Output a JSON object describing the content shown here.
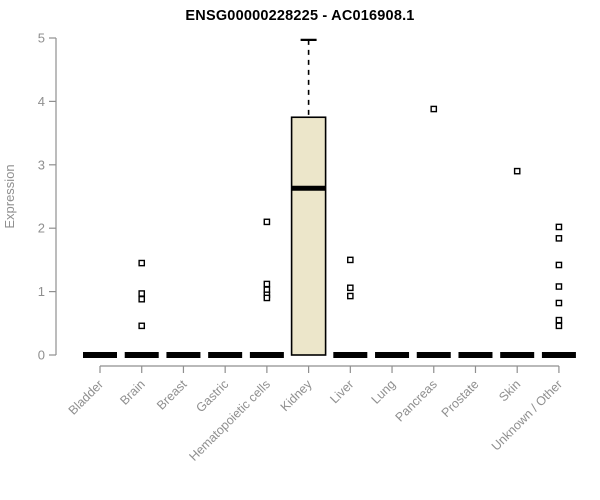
{
  "chart_data": {
    "type": "boxplot",
    "title": "ENSG00000228225 - AC016908.1",
    "ylabel": "Expression",
    "xlabel": "",
    "ylim": [
      0,
      5
    ],
    "yticks": [
      0,
      1,
      2,
      3,
      4,
      5
    ],
    "grid": false,
    "legend": false,
    "categories": [
      "Bladder",
      "Brain",
      "Breast",
      "Gastric",
      "Hematopoietic cells",
      "Kidney",
      "Liver",
      "Lung",
      "Pancreas",
      "Prostate",
      "Skin",
      "Unknown / Other"
    ],
    "boxes": [
      {
        "category": "Bladder",
        "q1": 0,
        "median": 0,
        "q3": 0,
        "whisker_low": 0,
        "whisker_high": 0,
        "outliers": []
      },
      {
        "category": "Brain",
        "q1": 0,
        "median": 0,
        "q3": 0,
        "whisker_low": 0,
        "whisker_high": 0,
        "outliers": [
          1.45,
          0.97,
          0.88,
          0.46
        ]
      },
      {
        "category": "Breast",
        "q1": 0,
        "median": 0,
        "q3": 0,
        "whisker_low": 0,
        "whisker_high": 0,
        "outliers": []
      },
      {
        "category": "Gastric",
        "q1": 0,
        "median": 0,
        "q3": 0,
        "whisker_low": 0,
        "whisker_high": 0,
        "outliers": []
      },
      {
        "category": "Hematopoietic cells",
        "q1": 0,
        "median": 0,
        "q3": 0,
        "whisker_low": 0,
        "whisker_high": 0,
        "outliers": [
          2.1,
          1.12,
          1.03,
          0.95,
          0.9
        ]
      },
      {
        "category": "Kidney",
        "q1": 0,
        "median": 2.63,
        "q3": 3.75,
        "whisker_low": 0,
        "whisker_high": 4.97,
        "outliers": []
      },
      {
        "category": "Liver",
        "q1": 0,
        "median": 0,
        "q3": 0,
        "whisker_low": 0,
        "whisker_high": 0,
        "outliers": [
          1.5,
          1.06,
          0.93
        ]
      },
      {
        "category": "Lung",
        "q1": 0,
        "median": 0,
        "q3": 0,
        "whisker_low": 0,
        "whisker_high": 0,
        "outliers": []
      },
      {
        "category": "Pancreas",
        "q1": 0,
        "median": 0,
        "q3": 0,
        "whisker_low": 0,
        "whisker_high": 0,
        "outliers": [
          3.88
        ]
      },
      {
        "category": "Prostate",
        "q1": 0,
        "median": 0,
        "q3": 0,
        "whisker_low": 0,
        "whisker_high": 0,
        "outliers": []
      },
      {
        "category": "Skin",
        "q1": 0,
        "median": 0,
        "q3": 0,
        "whisker_low": 0,
        "whisker_high": 0,
        "outliers": [
          2.9
        ]
      },
      {
        "category": "Unknown / Other",
        "q1": 0,
        "median": 0,
        "q3": 0,
        "whisker_low": 0,
        "whisker_high": 0,
        "outliers": [
          2.02,
          1.84,
          1.42,
          1.08,
          0.82,
          0.55,
          0.46
        ]
      }
    ],
    "colors": {
      "box_fill": "#ece6ca",
      "box_border": "#000000",
      "median": "#000000",
      "axis": "#8f8f8f",
      "tick_label": "#8f8f8f",
      "title": "#000000",
      "outlier_border": "#000000",
      "outlier_fill": "#ffffff",
      "background": "#ffffff"
    }
  }
}
